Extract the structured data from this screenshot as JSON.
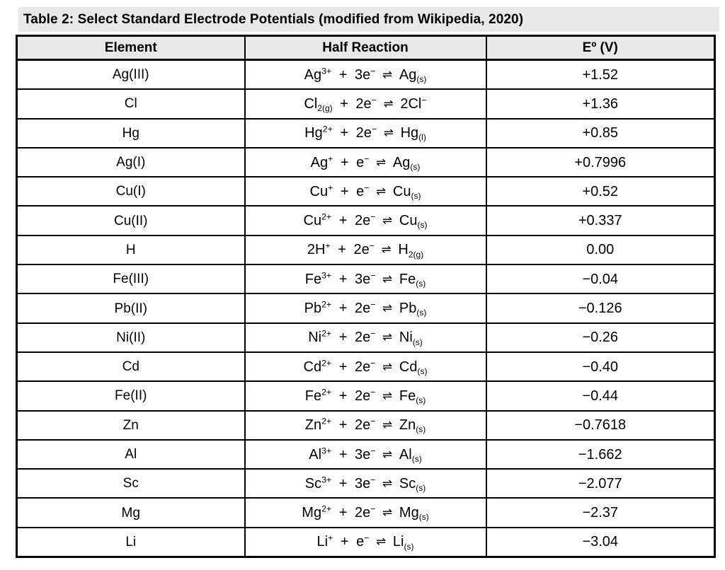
{
  "title": "Table 2: Select Standard Electrode Potentials (modified from Wikipedia, 2020)",
  "colors": {
    "band_bg": "#e9e9e9",
    "header_bg": "#e9e9e9",
    "border": "#000000",
    "text": "#000000",
    "row_bg": "#ffffff"
  },
  "table": {
    "headers": [
      "Element",
      "Half Reaction",
      "Eº (V)"
    ],
    "rows": [
      {
        "element": "Ag(III)",
        "reaction": [
          [
            "Ag"
          ],
          [
            "3+",
            "sup"
          ],
          [
            " + 3e"
          ],
          [
            "−",
            "sup"
          ],
          [
            " ⇌ ",
            "arr"
          ],
          [
            "Ag"
          ],
          [
            "(s)",
            "sub"
          ]
        ],
        "potential": "+1.52"
      },
      {
        "element": "Cl",
        "reaction": [
          [
            "Cl"
          ],
          [
            "2(g)",
            "sub"
          ],
          [
            " + 2e"
          ],
          [
            "−",
            "sup"
          ],
          [
            " ⇌ ",
            "arr"
          ],
          [
            "2Cl"
          ],
          [
            "−",
            "sup"
          ]
        ],
        "potential": "+1.36"
      },
      {
        "element": "Hg",
        "reaction": [
          [
            "Hg"
          ],
          [
            "2+",
            "sup"
          ],
          [
            " + 2e"
          ],
          [
            "−",
            "sup"
          ],
          [
            " ⇌ ",
            "arr"
          ],
          [
            "Hg"
          ],
          [
            "(l)",
            "sub"
          ]
        ],
        "potential": "+0.85"
      },
      {
        "element": "Ag(I)",
        "reaction": [
          [
            "Ag"
          ],
          [
            "+",
            "sup"
          ],
          [
            " + e"
          ],
          [
            "−",
            "sup"
          ],
          [
            " ⇌ ",
            "arr"
          ],
          [
            "Ag"
          ],
          [
            "(s)",
            "sub"
          ]
        ],
        "potential": "+0.7996"
      },
      {
        "element": "Cu(I)",
        "reaction": [
          [
            "Cu"
          ],
          [
            "+",
            "sup"
          ],
          [
            " + e"
          ],
          [
            "−",
            "sup"
          ],
          [
            " ⇌ ",
            "arr"
          ],
          [
            "Cu"
          ],
          [
            "(s)",
            "sub"
          ]
        ],
        "potential": "+0.52"
      },
      {
        "element": "Cu(II)",
        "reaction": [
          [
            "Cu"
          ],
          [
            "2+",
            "sup"
          ],
          [
            " + 2e"
          ],
          [
            "−",
            "sup"
          ],
          [
            " ⇌ ",
            "arr"
          ],
          [
            "Cu"
          ],
          [
            "(s)",
            "sub"
          ]
        ],
        "potential": "+0.337"
      },
      {
        "element": "H",
        "reaction": [
          [
            "2H"
          ],
          [
            "+",
            "sup"
          ],
          [
            " + 2e"
          ],
          [
            "−",
            "sup"
          ],
          [
            " ⇌ ",
            "arr"
          ],
          [
            "H"
          ],
          [
            "2(g)",
            "sub"
          ]
        ],
        "potential": "0.00"
      },
      {
        "element": "Fe(III)",
        "reaction": [
          [
            "Fe"
          ],
          [
            "3+",
            "sup"
          ],
          [
            " + 3e"
          ],
          [
            "−",
            "sup"
          ],
          [
            " ⇌ ",
            "arr"
          ],
          [
            "Fe"
          ],
          [
            "(s)",
            "sub"
          ]
        ],
        "potential": "−0.04"
      },
      {
        "element": "Pb(II)",
        "reaction": [
          [
            "Pb"
          ],
          [
            "2+",
            "sup"
          ],
          [
            " + 2e"
          ],
          [
            "−",
            "sup"
          ],
          [
            " ⇌ ",
            "arr"
          ],
          [
            "Pb"
          ],
          [
            "(s)",
            "sub"
          ]
        ],
        "potential": "−0.126"
      },
      {
        "element": "Ni(II)",
        "reaction": [
          [
            "Ni"
          ],
          [
            "2+",
            "sup"
          ],
          [
            " + 2e"
          ],
          [
            "−",
            "sup"
          ],
          [
            " ⇌ ",
            "arr"
          ],
          [
            "Ni"
          ],
          [
            "(s)",
            "sub"
          ]
        ],
        "potential": "−0.26"
      },
      {
        "element": "Cd",
        "reaction": [
          [
            "Cd"
          ],
          [
            "2+",
            "sup"
          ],
          [
            " + 2e"
          ],
          [
            "−",
            "sup"
          ],
          [
            " ⇌ ",
            "arr"
          ],
          [
            "Cd"
          ],
          [
            "(s)",
            "sub"
          ]
        ],
        "potential": "−0.40"
      },
      {
        "element": "Fe(II)",
        "reaction": [
          [
            "Fe"
          ],
          [
            "2+",
            "sup"
          ],
          [
            " + 2e"
          ],
          [
            "−",
            "sup"
          ],
          [
            " ⇌ ",
            "arr"
          ],
          [
            "Fe"
          ],
          [
            "(s)",
            "sub"
          ]
        ],
        "potential": "−0.44"
      },
      {
        "element": "Zn",
        "reaction": [
          [
            "Zn"
          ],
          [
            "2+",
            "sup"
          ],
          [
            " + 2e"
          ],
          [
            "−",
            "sup"
          ],
          [
            " ⇌ ",
            "arr"
          ],
          [
            "Zn"
          ],
          [
            "(s)",
            "sub"
          ]
        ],
        "potential": "−0.7618"
      },
      {
        "element": "Al",
        "reaction": [
          [
            "Al"
          ],
          [
            "3+",
            "sup"
          ],
          [
            " + 3e"
          ],
          [
            "−",
            "sup"
          ],
          [
            " ⇌ ",
            "arr"
          ],
          [
            "Al"
          ],
          [
            "(s)",
            "sub"
          ]
        ],
        "potential": "−1.662"
      },
      {
        "element": "Sc",
        "reaction": [
          [
            "Sc"
          ],
          [
            "3+",
            "sup"
          ],
          [
            " + 3e"
          ],
          [
            "−",
            "sup"
          ],
          [
            " ⇌ ",
            "arr"
          ],
          [
            "Sc"
          ],
          [
            "(s)",
            "sub"
          ]
        ],
        "potential": "−2.077"
      },
      {
        "element": "Mg",
        "reaction": [
          [
            "Mg"
          ],
          [
            "2+",
            "sup"
          ],
          [
            " + 2e"
          ],
          [
            "−",
            "sup"
          ],
          [
            " ⇌ ",
            "arr"
          ],
          [
            "Mg"
          ],
          [
            "(s)",
            "sub"
          ]
        ],
        "potential": "−2.37"
      },
      {
        "element": "Li",
        "reaction": [
          [
            "Li"
          ],
          [
            "+",
            "sup"
          ],
          [
            " + e"
          ],
          [
            "−",
            "sup"
          ],
          [
            " ⇌ ",
            "arr"
          ],
          [
            "Li"
          ],
          [
            "(s)",
            "sub"
          ]
        ],
        "potential": "−3.04"
      }
    ]
  }
}
